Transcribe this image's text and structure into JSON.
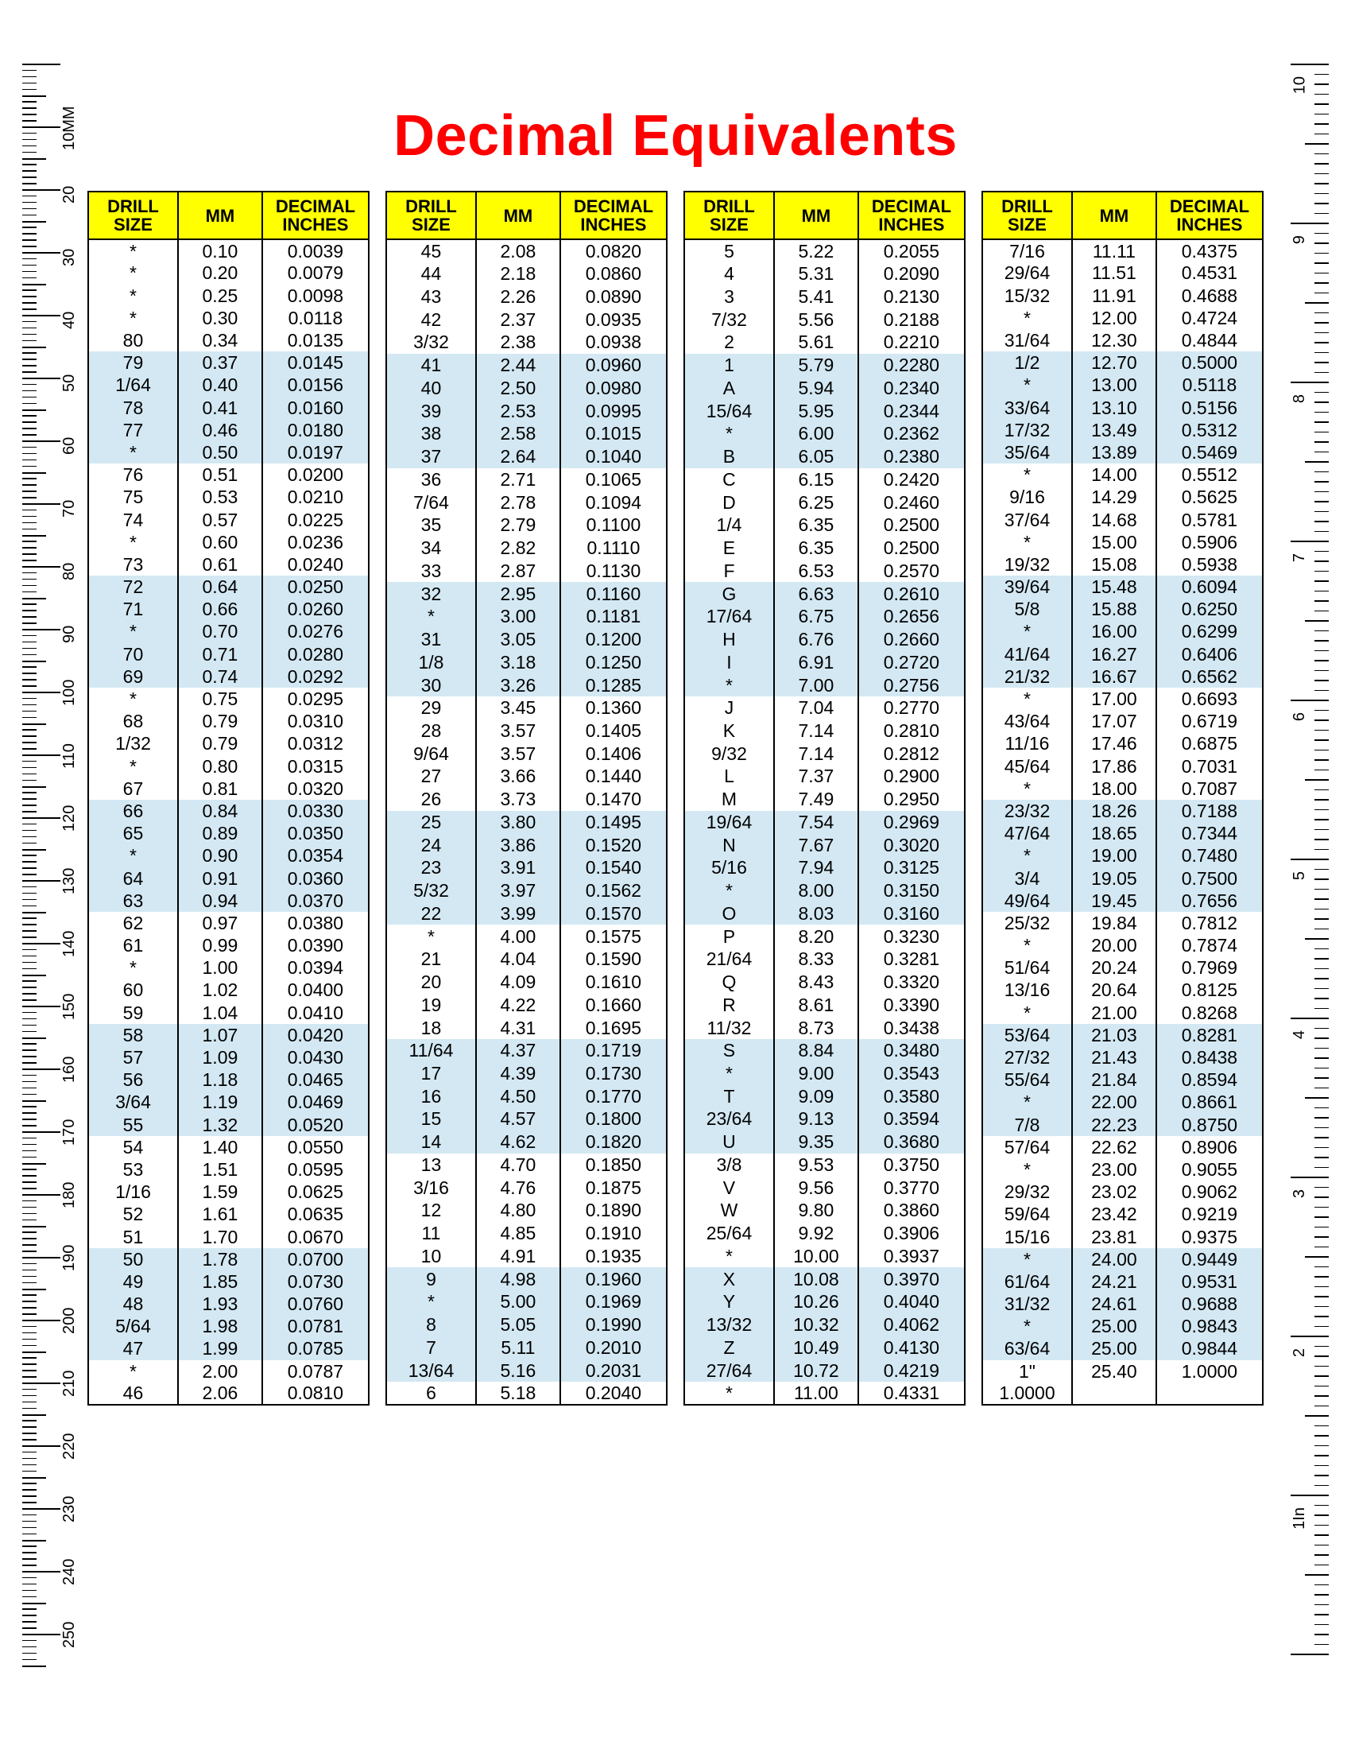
{
  "title": "Decimal Equivalents",
  "title_color": "#ff0000",
  "header_bg": "#ffff00",
  "band_bg": "#d3e8f3",
  "band_rows": 5,
  "headers": [
    "DRILL\nSIZE",
    "MM",
    "DECIMAL\nINCHES"
  ],
  "ruler_left": {
    "unit_label": "10MM",
    "labels": [
      "20",
      "30",
      "40",
      "50",
      "60",
      "70",
      "80",
      "90",
      "100",
      "110",
      "120",
      "130",
      "140",
      "150",
      "160",
      "170",
      "180",
      "190",
      "200",
      "210",
      "220",
      "230",
      "240",
      "250"
    ]
  },
  "ruler_right": {
    "labels": [
      "10",
      "9",
      "8",
      "7",
      "6",
      "5",
      "4",
      "3",
      "2",
      "1In"
    ]
  },
  "tables": [
    [
      [
        "*",
        "0.10",
        "0.0039"
      ],
      [
        "*",
        "0.20",
        "0.0079"
      ],
      [
        "*",
        "0.25",
        "0.0098"
      ],
      [
        "*",
        "0.30",
        "0.0118"
      ],
      [
        "80",
        "0.34",
        "0.0135"
      ],
      [
        "79",
        "0.37",
        "0.0145"
      ],
      [
        "1/64",
        "0.40",
        "0.0156"
      ],
      [
        "78",
        "0.41",
        "0.0160"
      ],
      [
        "77",
        "0.46",
        "0.0180"
      ],
      [
        "*",
        "0.50",
        "0.0197"
      ],
      [
        "76",
        "0.51",
        "0.0200"
      ],
      [
        "75",
        "0.53",
        "0.0210"
      ],
      [
        "74",
        "0.57",
        "0.0225"
      ],
      [
        "*",
        "0.60",
        "0.0236"
      ],
      [
        "73",
        "0.61",
        "0.0240"
      ],
      [
        "72",
        "0.64",
        "0.0250"
      ],
      [
        "71",
        "0.66",
        "0.0260"
      ],
      [
        "*",
        "0.70",
        "0.0276"
      ],
      [
        "70",
        "0.71",
        "0.0280"
      ],
      [
        "69",
        "0.74",
        "0.0292"
      ],
      [
        "*",
        "0.75",
        "0.0295"
      ],
      [
        "68",
        "0.79",
        "0.0310"
      ],
      [
        "1/32",
        "0.79",
        "0.0312"
      ],
      [
        "*",
        "0.80",
        "0.0315"
      ],
      [
        "67",
        "0.81",
        "0.0320"
      ],
      [
        "66",
        "0.84",
        "0.0330"
      ],
      [
        "65",
        "0.89",
        "0.0350"
      ],
      [
        "*",
        "0.90",
        "0.0354"
      ],
      [
        "64",
        "0.91",
        "0.0360"
      ],
      [
        "63",
        "0.94",
        "0.0370"
      ],
      [
        "62",
        "0.97",
        "0.0380"
      ],
      [
        "61",
        "0.99",
        "0.0390"
      ],
      [
        "*",
        "1.00",
        "0.0394"
      ],
      [
        "60",
        "1.02",
        "0.0400"
      ],
      [
        "59",
        "1.04",
        "0.0410"
      ],
      [
        "58",
        "1.07",
        "0.0420"
      ],
      [
        "57",
        "1.09",
        "0.0430"
      ],
      [
        "56",
        "1.18",
        "0.0465"
      ],
      [
        "3/64",
        "1.19",
        "0.0469"
      ],
      [
        "55",
        "1.32",
        "0.0520"
      ],
      [
        "54",
        "1.40",
        "0.0550"
      ],
      [
        "53",
        "1.51",
        "0.0595"
      ],
      [
        "1/16",
        "1.59",
        "0.0625"
      ],
      [
        "52",
        "1.61",
        "0.0635"
      ],
      [
        "51",
        "1.70",
        "0.0670"
      ],
      [
        "50",
        "1.78",
        "0.0700"
      ],
      [
        "49",
        "1.85",
        "0.0730"
      ],
      [
        "48",
        "1.93",
        "0.0760"
      ],
      [
        "5/64",
        "1.98",
        "0.0781"
      ],
      [
        "47",
        "1.99",
        "0.0785"
      ],
      [
        "*",
        "2.00",
        "0.0787"
      ],
      [
        "46",
        "2.06",
        "0.0810"
      ]
    ],
    [
      [
        "45",
        "2.08",
        "0.0820"
      ],
      [
        "44",
        "2.18",
        "0.0860"
      ],
      [
        "43",
        "2.26",
        "0.0890"
      ],
      [
        "42",
        "2.37",
        "0.0935"
      ],
      [
        "3/32",
        "2.38",
        "0.0938"
      ],
      [
        "41",
        "2.44",
        "0.0960"
      ],
      [
        "40",
        "2.50",
        "0.0980"
      ],
      [
        "39",
        "2.53",
        "0.0995"
      ],
      [
        "38",
        "2.58",
        "0.1015"
      ],
      [
        "37",
        "2.64",
        "0.1040"
      ],
      [
        "36",
        "2.71",
        "0.1065"
      ],
      [
        "7/64",
        "2.78",
        "0.1094"
      ],
      [
        "35",
        "2.79",
        "0.1100"
      ],
      [
        "34",
        "2.82",
        "0.1110"
      ],
      [
        "33",
        "2.87",
        "0.1130"
      ],
      [
        "32",
        "2.95",
        "0.1160"
      ],
      [
        "*",
        "3.00",
        "0.1181"
      ],
      [
        "31",
        "3.05",
        "0.1200"
      ],
      [
        "1/8",
        "3.18",
        "0.1250"
      ],
      [
        "30",
        "3.26",
        "0.1285"
      ],
      [
        "29",
        "3.45",
        "0.1360"
      ],
      [
        "28",
        "3.57",
        "0.1405"
      ],
      [
        "9/64",
        "3.57",
        "0.1406"
      ],
      [
        "27",
        "3.66",
        "0.1440"
      ],
      [
        "26",
        "3.73",
        "0.1470"
      ],
      [
        "25",
        "3.80",
        "0.1495"
      ],
      [
        "24",
        "3.86",
        "0.1520"
      ],
      [
        "23",
        "3.91",
        "0.1540"
      ],
      [
        "5/32",
        "3.97",
        "0.1562"
      ],
      [
        "22",
        "3.99",
        "0.1570"
      ],
      [
        "*",
        "4.00",
        "0.1575"
      ],
      [
        "21",
        "4.04",
        "0.1590"
      ],
      [
        "20",
        "4.09",
        "0.1610"
      ],
      [
        "19",
        "4.22",
        "0.1660"
      ],
      [
        "18",
        "4.31",
        "0.1695"
      ],
      [
        "11/64",
        "4.37",
        "0.1719"
      ],
      [
        "17",
        "4.39",
        "0.1730"
      ],
      [
        "16",
        "4.50",
        "0.1770"
      ],
      [
        "15",
        "4.57",
        "0.1800"
      ],
      [
        "14",
        "4.62",
        "0.1820"
      ],
      [
        "13",
        "4.70",
        "0.1850"
      ],
      [
        "3/16",
        "4.76",
        "0.1875"
      ],
      [
        "12",
        "4.80",
        "0.1890"
      ],
      [
        "11",
        "4.85",
        "0.1910"
      ],
      [
        "10",
        "4.91",
        "0.1935"
      ],
      [
        "9",
        "4.98",
        "0.1960"
      ],
      [
        "*",
        "5.00",
        "0.1969"
      ],
      [
        "8",
        "5.05",
        "0.1990"
      ],
      [
        "7",
        "5.11",
        "0.2010"
      ],
      [
        "13/64",
        "5.16",
        "0.2031"
      ],
      [
        "6",
        "5.18",
        "0.2040"
      ]
    ],
    [
      [
        "5",
        "5.22",
        "0.2055"
      ],
      [
        "4",
        "5.31",
        "0.2090"
      ],
      [
        "3",
        "5.41",
        "0.2130"
      ],
      [
        "7/32",
        "5.56",
        "0.2188"
      ],
      [
        "2",
        "5.61",
        "0.2210"
      ],
      [
        "1",
        "5.79",
        "0.2280"
      ],
      [
        "A",
        "5.94",
        "0.2340"
      ],
      [
        "15/64",
        "5.95",
        "0.2344"
      ],
      [
        "*",
        "6.00",
        "0.2362"
      ],
      [
        "B",
        "6.05",
        "0.2380"
      ],
      [
        "C",
        "6.15",
        "0.2420"
      ],
      [
        "D",
        "6.25",
        "0.2460"
      ],
      [
        "1/4",
        "6.35",
        "0.2500"
      ],
      [
        "E",
        "6.35",
        "0.2500"
      ],
      [
        "F",
        "6.53",
        "0.2570"
      ],
      [
        "G",
        "6.63",
        "0.2610"
      ],
      [
        "17/64",
        "6.75",
        "0.2656"
      ],
      [
        "H",
        "6.76",
        "0.2660"
      ],
      [
        "I",
        "6.91",
        "0.2720"
      ],
      [
        "*",
        "7.00",
        "0.2756"
      ],
      [
        "J",
        "7.04",
        "0.2770"
      ],
      [
        "K",
        "7.14",
        "0.2810"
      ],
      [
        "9/32",
        "7.14",
        "0.2812"
      ],
      [
        "L",
        "7.37",
        "0.2900"
      ],
      [
        "M",
        "7.49",
        "0.2950"
      ],
      [
        "19/64",
        "7.54",
        "0.2969"
      ],
      [
        "N",
        "7.67",
        "0.3020"
      ],
      [
        "5/16",
        "7.94",
        "0.3125"
      ],
      [
        "*",
        "8.00",
        "0.3150"
      ],
      [
        "O",
        "8.03",
        "0.3160"
      ],
      [
        "P",
        "8.20",
        "0.3230"
      ],
      [
        "21/64",
        "8.33",
        "0.3281"
      ],
      [
        "Q",
        "8.43",
        "0.3320"
      ],
      [
        "R",
        "8.61",
        "0.3390"
      ],
      [
        "11/32",
        "8.73",
        "0.3438"
      ],
      [
        "S",
        "8.84",
        "0.3480"
      ],
      [
        "*",
        "9.00",
        "0.3543"
      ],
      [
        "T",
        "9.09",
        "0.3580"
      ],
      [
        "23/64",
        "9.13",
        "0.3594"
      ],
      [
        "U",
        "9.35",
        "0.3680"
      ],
      [
        "3/8",
        "9.53",
        "0.3750"
      ],
      [
        "V",
        "9.56",
        "0.3770"
      ],
      [
        "W",
        "9.80",
        "0.3860"
      ],
      [
        "25/64",
        "9.92",
        "0.3906"
      ],
      [
        "*",
        "10.00",
        "0.3937"
      ],
      [
        "X",
        "10.08",
        "0.3970"
      ],
      [
        "Y",
        "10.26",
        "0.4040"
      ],
      [
        "13/32",
        "10.32",
        "0.4062"
      ],
      [
        "Z",
        "10.49",
        "0.4130"
      ],
      [
        "27/64",
        "10.72",
        "0.4219"
      ],
      [
        "*",
        "11.00",
        "0.4331"
      ]
    ],
    [
      [
        "7/16",
        "11.11",
        "0.4375"
      ],
      [
        "29/64",
        "11.51",
        "0.4531"
      ],
      [
        "15/32",
        "11.91",
        "0.4688"
      ],
      [
        "*",
        "12.00",
        "0.4724"
      ],
      [
        "31/64",
        "12.30",
        "0.4844"
      ],
      [
        "1/2",
        "12.70",
        "0.5000"
      ],
      [
        "*",
        "13.00",
        "0.5118"
      ],
      [
        "33/64",
        "13.10",
        "0.5156"
      ],
      [
        "17/32",
        "13.49",
        "0.5312"
      ],
      [
        "35/64",
        "13.89",
        "0.5469"
      ],
      [
        "*",
        "14.00",
        "0.5512"
      ],
      [
        "9/16",
        "14.29",
        "0.5625"
      ],
      [
        "37/64",
        "14.68",
        "0.5781"
      ],
      [
        "*",
        "15.00",
        "0.5906"
      ],
      [
        "19/32",
        "15.08",
        "0.5938"
      ],
      [
        "39/64",
        "15.48",
        "0.6094"
      ],
      [
        "5/8",
        "15.88",
        "0.6250"
      ],
      [
        "*",
        "16.00",
        "0.6299"
      ],
      [
        "41/64",
        "16.27",
        "0.6406"
      ],
      [
        "21/32",
        "16.67",
        "0.6562"
      ],
      [
        "*",
        "17.00",
        "0.6693"
      ],
      [
        "43/64",
        "17.07",
        "0.6719"
      ],
      [
        "11/16",
        "17.46",
        "0.6875"
      ],
      [
        "45/64",
        "17.86",
        "0.7031"
      ],
      [
        "*",
        "18.00",
        "0.7087"
      ],
      [
        "23/32",
        "18.26",
        "0.7188"
      ],
      [
        "47/64",
        "18.65",
        "0.7344"
      ],
      [
        "*",
        "19.00",
        "0.7480"
      ],
      [
        "3/4",
        "19.05",
        "0.7500"
      ],
      [
        "49/64",
        "19.45",
        "0.7656"
      ],
      [
        "25/32",
        "19.84",
        "0.7812"
      ],
      [
        "*",
        "20.00",
        "0.7874"
      ],
      [
        "51/64",
        "20.24",
        "0.7969"
      ],
      [
        "13/16",
        "20.64",
        "0.8125"
      ],
      [
        "*",
        "21.00",
        "0.8268"
      ],
      [
        "53/64",
        "21.03",
        "0.8281"
      ],
      [
        "27/32",
        "21.43",
        "0.8438"
      ],
      [
        "55/64",
        "21.84",
        "0.8594"
      ],
      [
        "*",
        "22.00",
        "0.8661"
      ],
      [
        "7/8",
        "22.23",
        "0.8750"
      ],
      [
        "57/64",
        "22.62",
        "0.8906"
      ],
      [
        "*",
        "23.00",
        "0.9055"
      ],
      [
        "29/32",
        "23.02",
        "0.9062"
      ],
      [
        "59/64",
        "23.42",
        "0.9219"
      ],
      [
        "15/16",
        "23.81",
        "0.9375"
      ],
      [
        "*",
        "24.00",
        "0.9449"
      ],
      [
        "61/64",
        "24.21",
        "0.9531"
      ],
      [
        "31/32",
        "24.61",
        "0.9688"
      ],
      [
        "*",
        "25.00",
        "0.9843"
      ],
      [
        "63/64",
        "25.00",
        "0.9844"
      ],
      [
        "1\"",
        "25.40",
        "1.0000"
      ],
      [
        "1.0000",
        "",
        ""
      ]
    ]
  ]
}
